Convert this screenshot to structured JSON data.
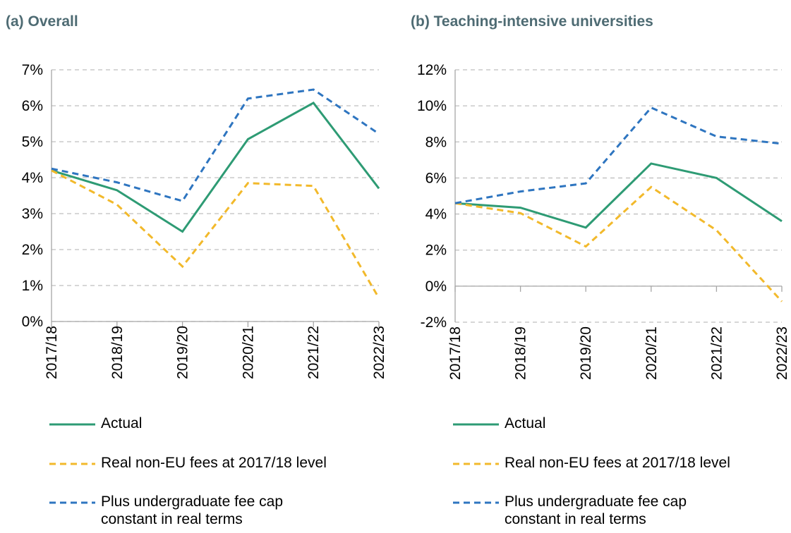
{
  "chart_data": [
    {
      "type": "line",
      "title": "(a) Overall",
      "categories": [
        "2017/18",
        "2018/19",
        "2019/20",
        "2020/21",
        "2021/22",
        "2022/23"
      ],
      "series": [
        {
          "name": "Actual",
          "color": "#2e9b74",
          "dash": false,
          "values": [
            4.2,
            3.65,
            2.5,
            5.07,
            6.08,
            3.7
          ]
        },
        {
          "name": "Real non-EU fees at 2017/18 level",
          "color": "#f2b92b",
          "dash": true,
          "values": [
            4.2,
            3.25,
            1.53,
            3.85,
            3.77,
            0.65
          ]
        },
        {
          "name": "Plus undergraduate fee cap constant in real terms",
          "color": "#2e75c0",
          "dash": true,
          "values": [
            4.25,
            3.87,
            3.35,
            6.2,
            6.45,
            5.22
          ]
        }
      ],
      "ylim": [
        0,
        7
      ],
      "yticks": [
        {
          "value": 0,
          "label": "0%"
        },
        {
          "value": 1,
          "label": "1%"
        },
        {
          "value": 2,
          "label": "2%"
        },
        {
          "value": 3,
          "label": "3%"
        },
        {
          "value": 4,
          "label": "4%"
        },
        {
          "value": 5,
          "label": "5%"
        },
        {
          "value": 6,
          "label": "6%"
        },
        {
          "value": 7,
          "label": "7%"
        }
      ],
      "grid": true
    },
    {
      "type": "line",
      "title": "(b) Teaching-intensive universities",
      "categories": [
        "2017/18",
        "2018/19",
        "2019/20",
        "2020/21",
        "2021/22",
        "2022/23"
      ],
      "series": [
        {
          "name": "Actual",
          "color": "#2e9b74",
          "dash": false,
          "values": [
            4.6,
            4.35,
            3.25,
            6.8,
            6.0,
            3.6
          ]
        },
        {
          "name": "Real non-EU fees at 2017/18 level",
          "color": "#f2b92b",
          "dash": true,
          "values": [
            4.6,
            4.05,
            2.2,
            5.5,
            3.1,
            -0.85
          ]
        },
        {
          "name": "Plus undergraduate fee cap constant in real terms",
          "color": "#2e75c0",
          "dash": true,
          "values": [
            4.6,
            5.25,
            5.7,
            9.9,
            8.3,
            7.9
          ]
        }
      ],
      "ylim": [
        -2,
        12
      ],
      "yticks": [
        {
          "value": -2,
          "label": "-2%"
        },
        {
          "value": 0,
          "label": "0%"
        },
        {
          "value": 2,
          "label": "2%"
        },
        {
          "value": 4,
          "label": "4%"
        },
        {
          "value": 6,
          "label": "6%"
        },
        {
          "value": 8,
          "label": "8%"
        },
        {
          "value": 10,
          "label": "10%"
        },
        {
          "value": 12,
          "label": "12%"
        }
      ],
      "grid": true
    }
  ]
}
